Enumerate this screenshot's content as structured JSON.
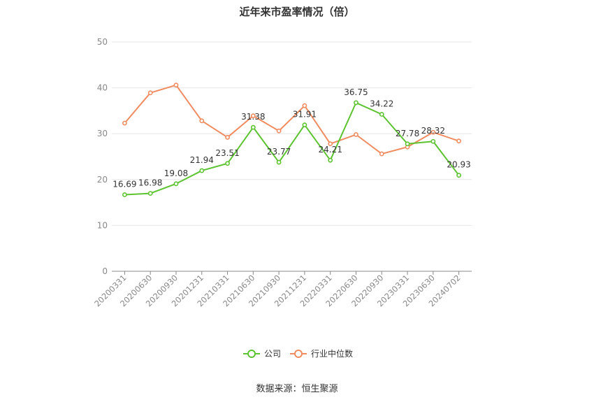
{
  "title": "近年来市盈率情况（倍）",
  "source": "数据来源：恒生聚源",
  "chart_data": {
    "type": "line",
    "title": "近年来市盈率情况（倍）",
    "categories": [
      "20200331",
      "20200630",
      "20200930",
      "20201231",
      "20210331",
      "20210630",
      "20210930",
      "20211231",
      "20220331",
      "20220630",
      "20220930",
      "20230331",
      "20230630",
      "20240702"
    ],
    "series": [
      {
        "name": "公司",
        "color": "#5cc430",
        "values": [
          16.69,
          16.98,
          19.08,
          21.94,
          23.51,
          31.38,
          23.77,
          31.91,
          24.21,
          36.75,
          34.22,
          27.78,
          28.32,
          20.93
        ],
        "labels": [
          "16.69",
          "16.98",
          "19.08",
          "21.94",
          "23.51",
          "31.38",
          "23.77",
          "31.91",
          "24.21",
          "36.75",
          "34.22",
          "27.78",
          "28.32",
          "20.93"
        ]
      },
      {
        "name": "行业中位数",
        "color": "#f08c60",
        "values": [
          32.3,
          38.9,
          40.6,
          32.8,
          29.2,
          33.9,
          30.6,
          36.1,
          27.8,
          29.8,
          25.6,
          27.1,
          30.3,
          28.4
        ]
      }
    ],
    "ylim": [
      0,
      50
    ],
    "yticks": [
      0,
      10,
      20,
      30,
      40,
      50
    ],
    "grid": true,
    "legend_position": "bottom-center"
  }
}
